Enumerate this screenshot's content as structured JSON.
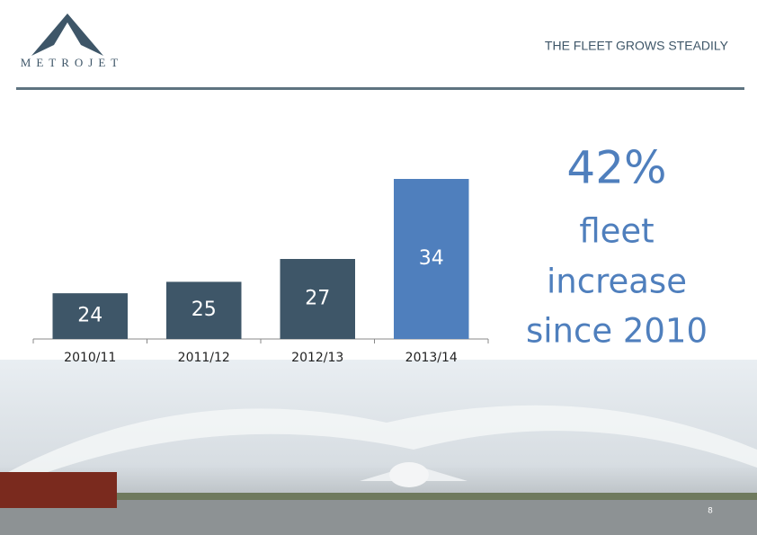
{
  "header": {
    "logo": "METROJET",
    "title": "THE FLEET GROWS STEADILY"
  },
  "chart_data": {
    "type": "bar",
    "categories": [
      "2010/11",
      "2011/12",
      "2012/13",
      "2013/14"
    ],
    "values": [
      24,
      25,
      27,
      34
    ],
    "colors": [
      "#3e5668",
      "#3e5668",
      "#3e5668",
      "#4f7fbd"
    ],
    "ylim": [
      20,
      34
    ]
  },
  "callout": {
    "figure": "42%",
    "lines": [
      "fleet",
      "increase",
      "since 2010"
    ]
  },
  "footer": {
    "page": "8"
  }
}
